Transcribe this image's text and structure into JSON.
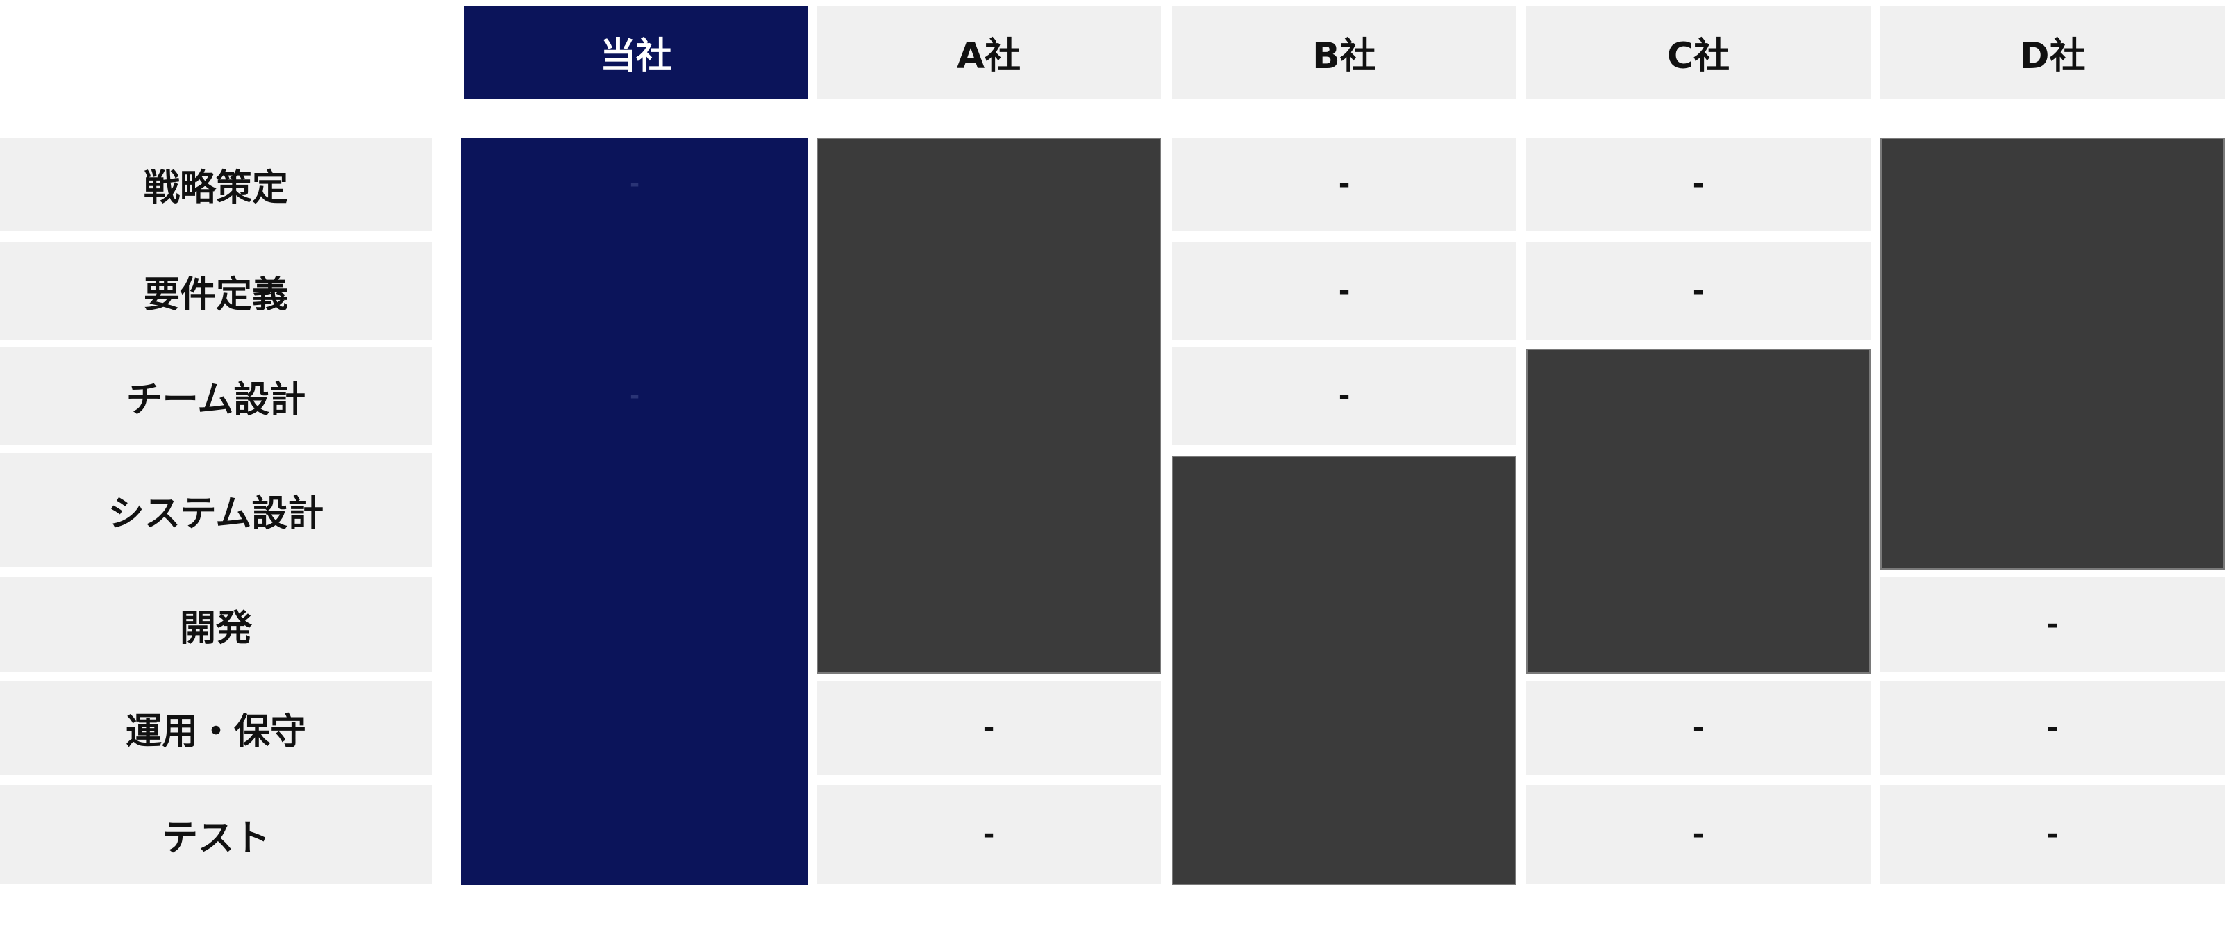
{
  "chart_data": {
    "type": "table",
    "columns": [
      "当社",
      "A社",
      "B社",
      "C社",
      "D社"
    ],
    "rows": [
      "戦略策定",
      "要件定義",
      "チーム設計",
      "システム設計",
      "開発",
      "運用・保守",
      "テスト"
    ],
    "empty_marker": "-",
    "coverage": [
      {
        "company": "当社",
        "from": "戦略策定",
        "to": "テスト"
      },
      {
        "company": "A社",
        "from": "戦略策定",
        "to": "開発"
      },
      {
        "company": "B社",
        "from": "システム設計",
        "to": "テスト"
      },
      {
        "company": "C社",
        "from": "チーム設計",
        "to": "開発"
      },
      {
        "company": "D社",
        "from": "戦略策定",
        "to": "システム設計"
      }
    ],
    "own_column_markers": [
      {
        "row": "戦略策定",
        "label": "-"
      },
      {
        "row": "チーム設計",
        "label": "-"
      }
    ],
    "colors": {
      "own_company": "#0b145a",
      "covered": "#3b3b3b",
      "empty": "#f0f0f0",
      "text": "#111111",
      "own_text": "#ffffff"
    }
  }
}
